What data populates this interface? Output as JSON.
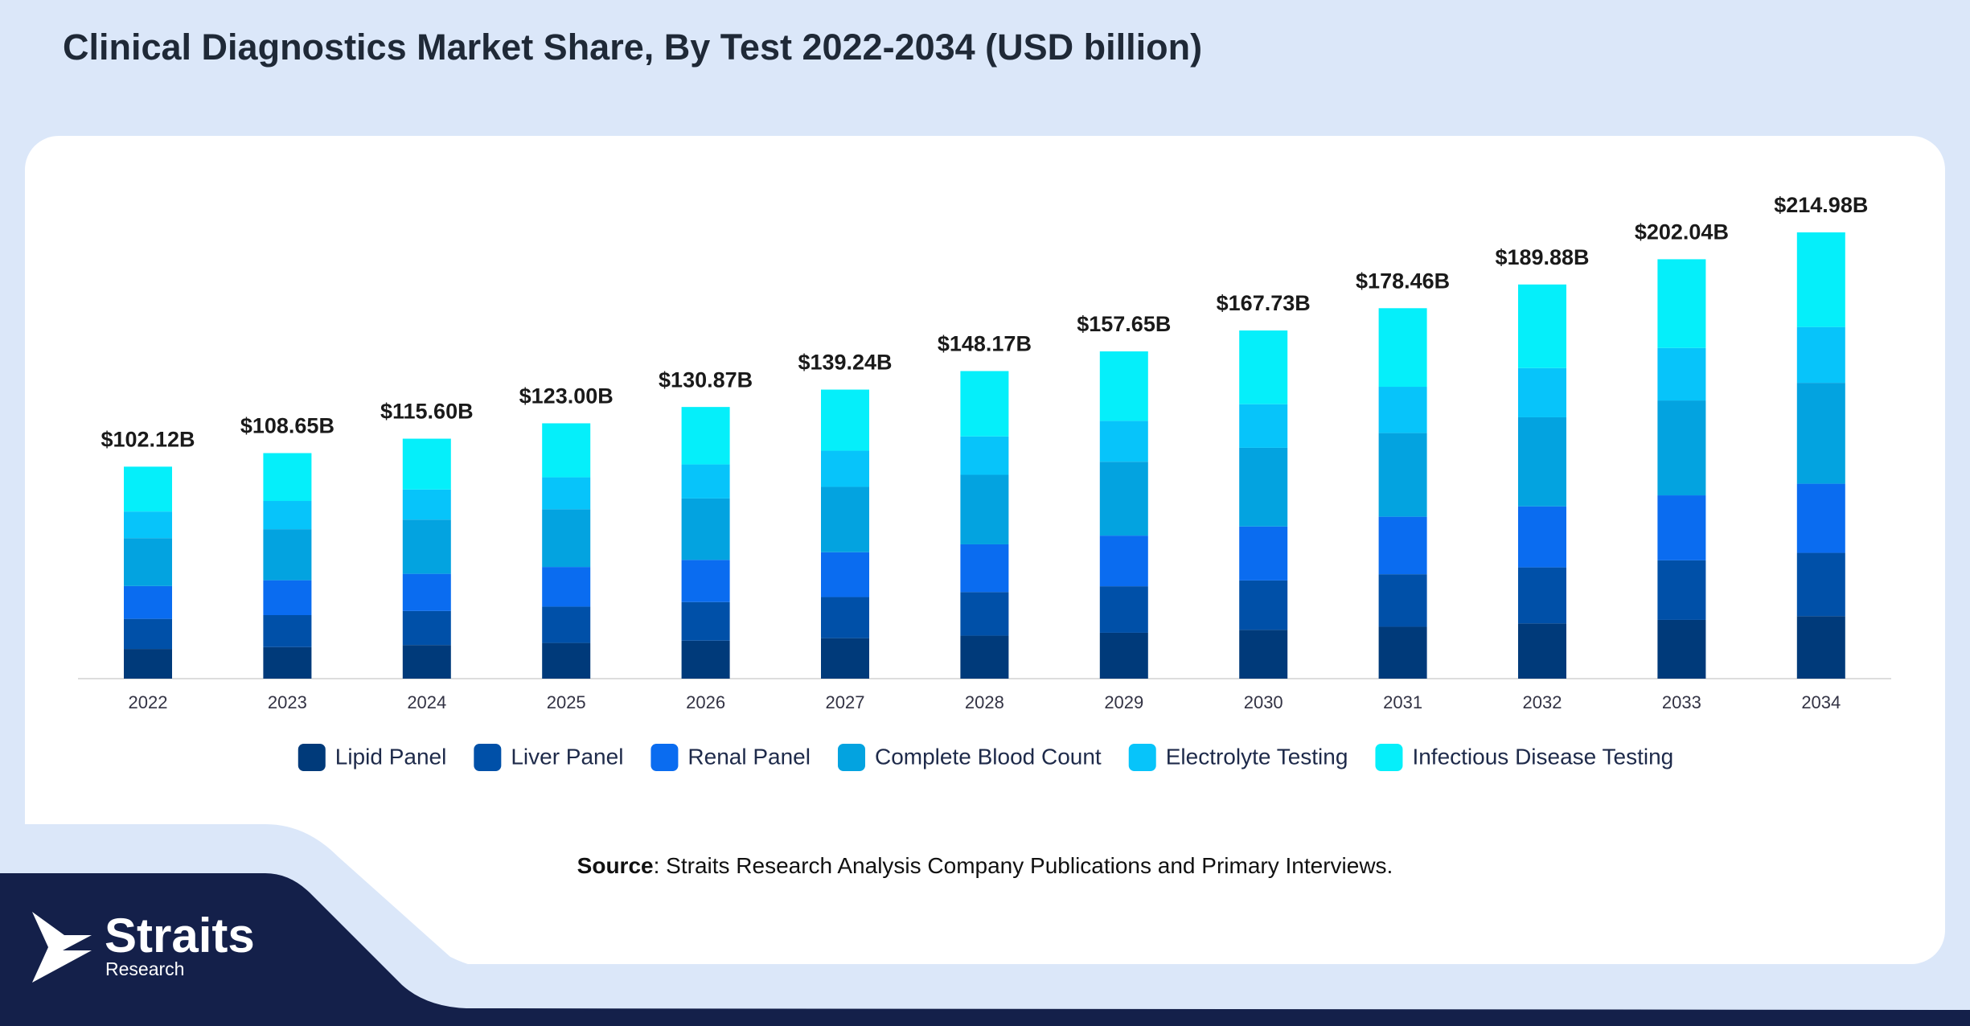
{
  "chart_data": {
    "type": "stacked_bar",
    "title": "Clinical Diagnostics Market Share, By Test 2022-2034 (USD billion)",
    "categories": [
      "2022",
      "2023",
      "2024",
      "2025",
      "2026",
      "2027",
      "2028",
      "2029",
      "2030",
      "2031",
      "2032",
      "2033",
      "2034"
    ],
    "series": [
      {
        "name": "Lipid Panel",
        "color": "#003a7a",
        "values": [
          14.3,
          15.2,
          16.2,
          17.2,
          18.3,
          19.5,
          20.7,
          22.1,
          23.5,
          25.0,
          26.6,
          28.3,
          30.1
        ]
      },
      {
        "name": "Liver Panel",
        "color": "#0050a8",
        "values": [
          14.5,
          15.4,
          16.4,
          17.5,
          18.6,
          19.8,
          21.0,
          22.4,
          23.8,
          25.3,
          27.0,
          28.7,
          30.5
        ]
      },
      {
        "name": "Renal Panel",
        "color": "#0a6cf0",
        "values": [
          15.8,
          16.8,
          17.9,
          19.1,
          20.3,
          21.6,
          23.0,
          24.4,
          26.0,
          27.7,
          29.4,
          31.3,
          33.3
        ]
      },
      {
        "name": "Complete Blood Count",
        "color": "#03a3e0",
        "values": [
          23.1,
          24.6,
          26.1,
          27.8,
          29.6,
          31.5,
          33.5,
          35.6,
          37.9,
          40.3,
          42.9,
          45.7,
          48.6
        ]
      },
      {
        "name": "Electrolyte Testing",
        "color": "#07c4fa",
        "values": [
          12.8,
          13.6,
          14.5,
          15.4,
          16.4,
          17.4,
          18.5,
          19.7,
          21.0,
          22.3,
          23.7,
          25.3,
          26.9
        ]
      },
      {
        "name": "Infectious Disease Testing",
        "color": "#05effa",
        "values": [
          21.62,
          23.05,
          24.5,
          26.0,
          27.67,
          29.44,
          31.47,
          33.45,
          35.53,
          37.86,
          40.28,
          42.74,
          45.58
        ]
      }
    ],
    "totals": {
      "values": [
        102.12,
        108.65,
        115.6,
        123.0,
        130.87,
        139.24,
        148.17,
        157.65,
        167.73,
        178.46,
        189.88,
        202.04,
        214.98
      ],
      "value_labels": [
        "$102.12B",
        "$108.65B",
        "$115.60B",
        "$123.00B",
        "$130.87B",
        "$139.24B",
        "$148.17B",
        "$157.65B",
        "$167.73B",
        "$178.46B",
        "$189.88B",
        "$202.04B",
        "$214.98B"
      ]
    },
    "legend": "bottom"
  },
  "source": {
    "label": "Source",
    "text": ": Straits Research Analysis Company Publications and Primary Interviews."
  },
  "brand": {
    "name": "Straits",
    "sub": "Research"
  }
}
